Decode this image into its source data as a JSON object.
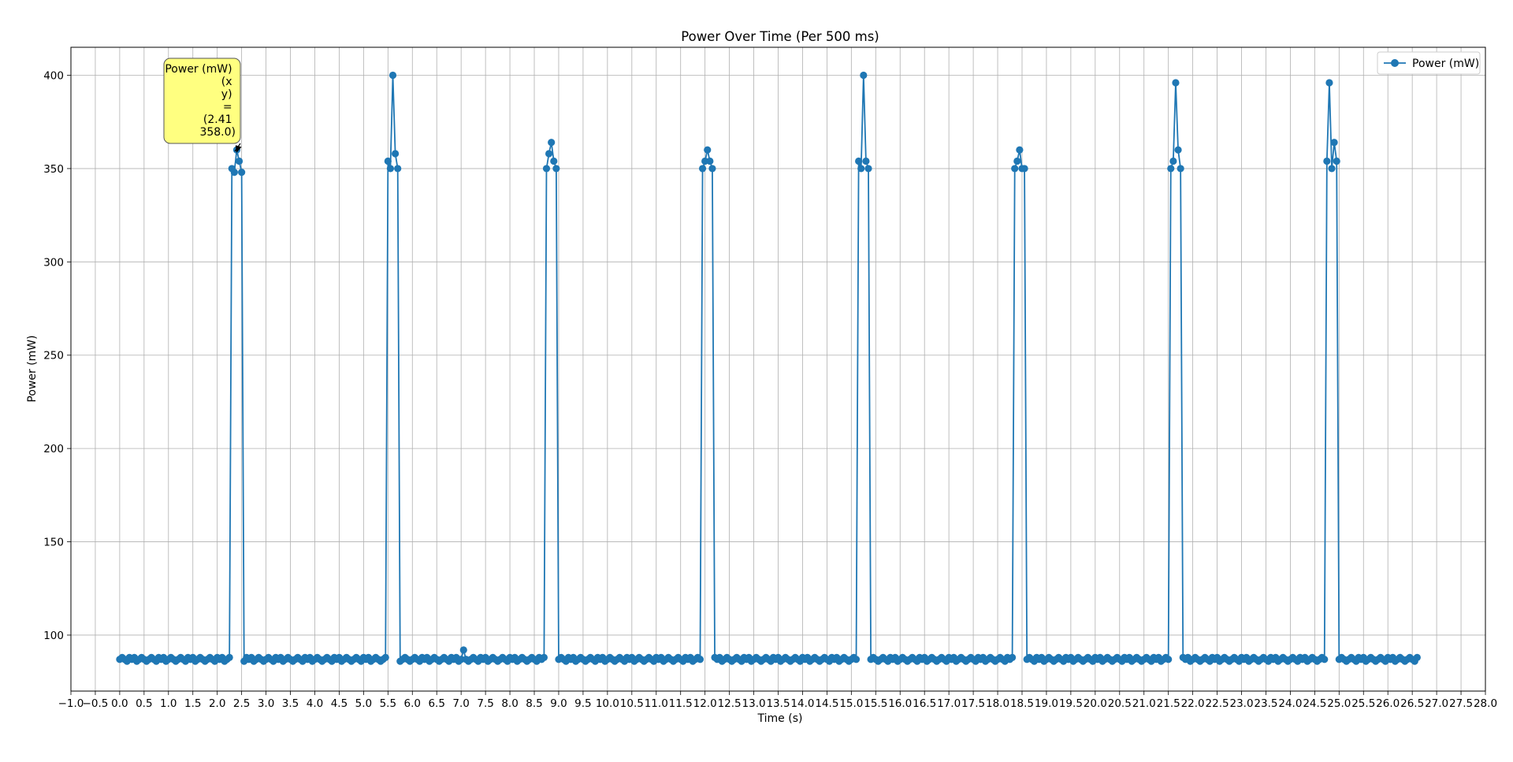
{
  "chart_data": {
    "type": "line",
    "title": "Power Over Time (Per 500 ms)",
    "xlabel": "Time (s)",
    "ylabel": "Power (mW)",
    "xlim": [
      -1.0,
      28.0
    ],
    "ylim": [
      70,
      415
    ],
    "x_ticks": [
      -1.0,
      -0.5,
      0.0,
      0.5,
      1.0,
      1.5,
      2.0,
      2.5,
      3.0,
      3.5,
      4.0,
      4.5,
      5.0,
      5.5,
      6.0,
      6.5,
      7.0,
      7.5,
      8.0,
      8.5,
      9.0,
      9.5,
      10.0,
      10.5,
      11.0,
      11.5,
      12.0,
      12.5,
      13.0,
      13.5,
      14.0,
      14.5,
      15.0,
      15.5,
      16.0,
      16.5,
      17.0,
      17.5,
      18.0,
      18.5,
      19.0,
      19.5,
      20.0,
      20.5,
      21.0,
      21.5,
      22.0,
      22.5,
      23.0,
      23.5,
      24.0,
      24.5,
      25.0,
      25.5,
      26.0,
      26.5,
      27.0,
      27.5,
      28.0
    ],
    "y_ticks": [
      100,
      150,
      200,
      250,
      300,
      350,
      400
    ],
    "grid": true,
    "legend": {
      "position": "top-right",
      "entries": [
        "Power (mW)"
      ]
    },
    "series_color": "#1f77b4",
    "annotation": {
      "lines": [
        "Power (mW)",
        "(x",
        "y)",
        "=",
        "(2.41",
        "358.0)"
      ],
      "target": {
        "x": 2.41,
        "y": 358.0
      },
      "background": "#ffff80"
    },
    "series": [
      {
        "name": "Power (mW)",
        "sample_interval_s": 0.05,
        "baseline_mW": 87,
        "x_range": [
          0.0,
          26.6
        ],
        "spikes": [
          {
            "x": [
              2.3,
              2.35,
              2.4,
              2.45,
              2.5
            ],
            "y": [
              350,
              348,
              360,
              354,
              348
            ]
          },
          {
            "x": [
              5.5,
              5.55,
              5.6,
              5.65,
              5.7
            ],
            "y": [
              354,
              350,
              400,
              358,
              350
            ]
          },
          {
            "x": [
              8.75,
              8.8,
              8.85,
              8.9,
              8.95
            ],
            "y": [
              350,
              358,
              364,
              354,
              350
            ]
          },
          {
            "x": [
              11.95,
              12.0,
              12.05,
              12.1,
              12.15
            ],
            "y": [
              350,
              354,
              360,
              354,
              350
            ]
          },
          {
            "x": [
              15.15,
              15.2,
              15.25,
              15.3,
              15.35
            ],
            "y": [
              354,
              350,
              400,
              354,
              350
            ]
          },
          {
            "x": [
              18.35,
              18.4,
              18.45,
              18.5,
              18.55
            ],
            "y": [
              350,
              354,
              360,
              350,
              350
            ]
          },
          {
            "x": [
              21.55,
              21.6,
              21.65,
              21.7,
              21.75
            ],
            "y": [
              350,
              354,
              396,
              360,
              350
            ]
          },
          {
            "x": [
              24.75,
              24.8,
              24.85,
              24.9,
              24.95
            ],
            "y": [
              354,
              396,
              350,
              364,
              354
            ]
          }
        ],
        "outliers": [
          {
            "x": 7.05,
            "y": 92
          }
        ]
      }
    ]
  }
}
